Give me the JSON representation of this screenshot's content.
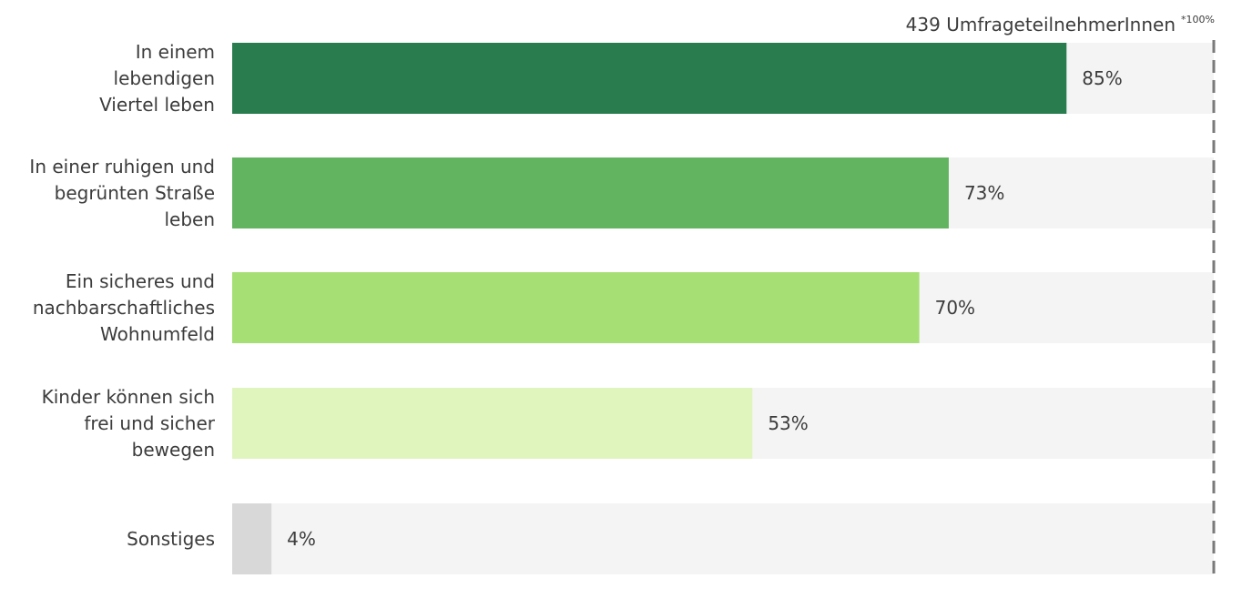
{
  "header": {
    "participants": "439 UmfrageteilnehmerInnen",
    "scale_note": "*100%"
  },
  "chart_data": {
    "type": "bar",
    "orientation": "horizontal",
    "categories": [
      [
        "In einem",
        "lebendigen",
        "Viertel leben"
      ],
      [
        "In einer ruhigen und",
        "begrünten Straße",
        "leben"
      ],
      [
        "Ein sicheres und",
        "nachbarschaftliches",
        "Wohnumfeld"
      ],
      [
        "Kinder können sich",
        "frei und sicher",
        "bewegen"
      ],
      [
        "Sonstiges"
      ]
    ],
    "values": [
      85,
      73,
      70,
      53,
      4
    ],
    "value_labels": [
      "85%",
      "73%",
      "70%",
      "53%",
      "4%"
    ],
    "colors": [
      "#287c4e",
      "#62b460",
      "#a6df74",
      "#e0f4be",
      "#d8d8d8"
    ],
    "track_color": "#f4f4f4",
    "xlim": [
      0,
      100
    ],
    "grid": false,
    "legend": "none"
  }
}
